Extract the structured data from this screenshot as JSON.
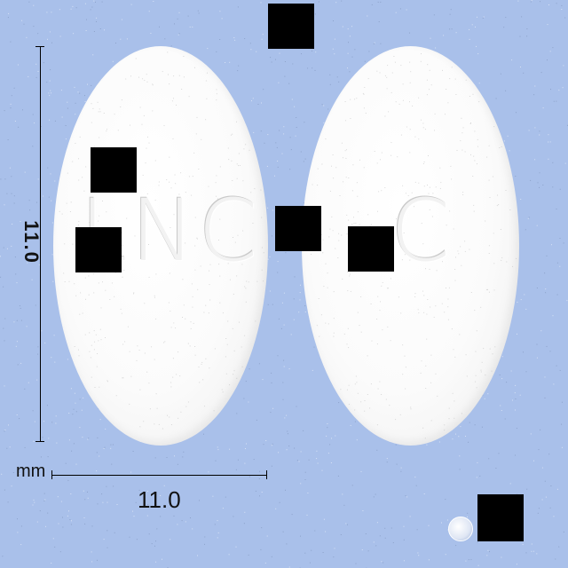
{
  "image": {
    "background_color": "#a9c0ea",
    "subject": "two white oval tablets",
    "left_tablet": {
      "imprint": "LNC"
    },
    "right_tablet": {
      "imprint": "C"
    },
    "dimension_vertical": {
      "value": "11.0"
    },
    "dimension_horizontal": {
      "value": "11.0"
    },
    "unit": "mm",
    "watermark": {
      "icon": "circle-logo-icon"
    }
  }
}
